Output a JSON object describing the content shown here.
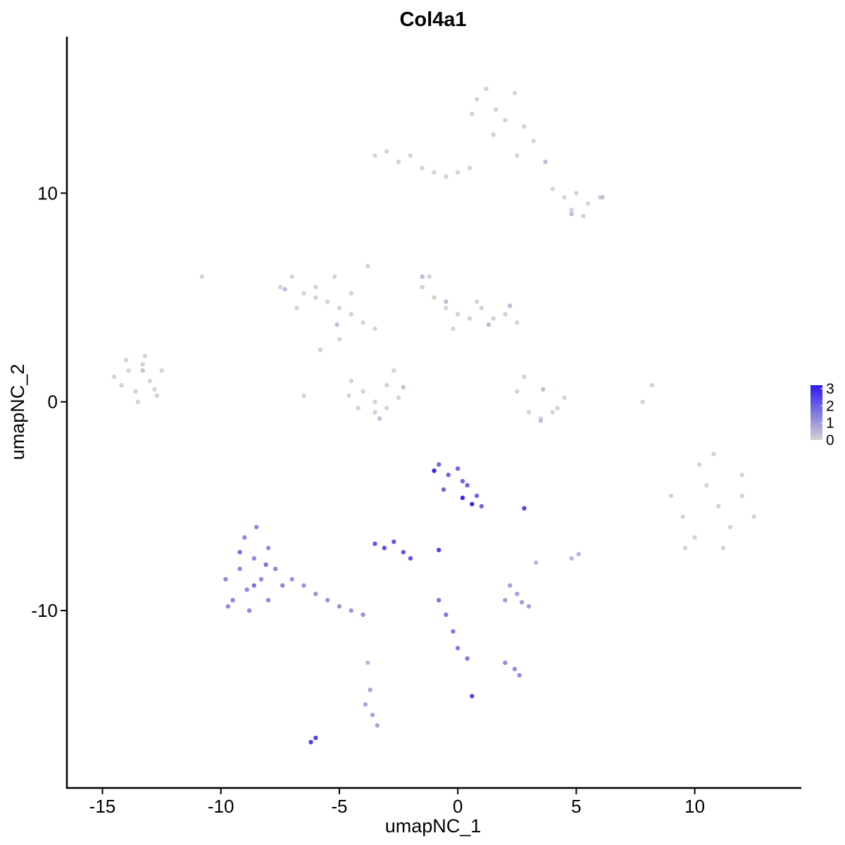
{
  "chart_data": {
    "type": "scatter",
    "title": "Col4a1",
    "xlabel": "umapNC_1",
    "ylabel": "umapNC_2",
    "xlim": [
      -16.5,
      14.5
    ],
    "ylim": [
      -18.5,
      17.5
    ],
    "x_ticks": [
      -15,
      -10,
      -5,
      0,
      5,
      10
    ],
    "y_ticks": [
      -10,
      0,
      10
    ],
    "x_tick_labels": [
      "-15",
      "-10",
      "-5",
      "0",
      "5",
      "10"
    ],
    "y_tick_labels": [
      "-10",
      "0",
      "10"
    ],
    "grid": false,
    "legend": {
      "placement": "right",
      "min": 0,
      "max": 3.2,
      "labels": [
        "3",
        "2",
        "1",
        "0"
      ],
      "values": [
        3,
        2,
        1,
        0
      ],
      "low_color": "#D3D3D3",
      "high_color": "#2A1CF0"
    },
    "series": [
      {
        "x": [
          -14.5,
          -14.2,
          -13.9,
          -13.6,
          -13.3,
          -13.0,
          -12.7,
          -14.0,
          -13.5,
          -13.2,
          -12.5,
          -12.8
        ],
        "y": [
          1.2,
          0.8,
          1.5,
          0.5,
          1.8,
          1.0,
          0.3,
          2.0,
          0.0,
          2.2,
          1.5,
          0.6
        ],
        "value": 0
      },
      {
        "x": [
          -13.3
        ],
        "y": [
          1.5
        ],
        "value": 0.3
      },
      {
        "x": [
          -7.5,
          -7.0,
          -6.5,
          -6.0,
          -5.5,
          -5.0,
          -4.5,
          -4.0,
          -3.5,
          -6.8,
          -6.0,
          -5.2
        ],
        "y": [
          5.5,
          6.0,
          5.2,
          5.0,
          4.8,
          4.5,
          4.2,
          3.8,
          3.5,
          4.5,
          5.5,
          6.0
        ],
        "value": 0
      },
      {
        "x": [
          -7.3,
          -5.1
        ],
        "y": [
          5.4,
          3.7
        ],
        "value": 0.4
      },
      {
        "x": [
          -4.5,
          -4.0,
          -3.5,
          -3.0,
          -2.5,
          -3.0,
          -3.5,
          -4.2,
          -4.6,
          -2.7
        ],
        "y": [
          1.0,
          0.5,
          0.0,
          -0.3,
          0.2,
          0.8,
          -0.5,
          -0.3,
          0.3,
          1.5
        ],
        "value": 0
      },
      {
        "x": [
          -3.3,
          -2.3
        ],
        "y": [
          -0.8,
          0.7
        ],
        "value": 0.3
      },
      {
        "x": [
          -1.5,
          -1.0,
          -0.5,
          0.0,
          0.5,
          1.0,
          1.5,
          2.0,
          2.5,
          -1.2,
          -0.2,
          0.8
        ],
        "y": [
          5.5,
          5.0,
          4.5,
          4.2,
          4.0,
          4.5,
          4.0,
          4.2,
          3.8,
          6.0,
          3.5,
          4.8
        ],
        "value": 0
      },
      {
        "x": [
          -1.5,
          -0.5,
          1.3,
          2.2
        ],
        "y": [
          6.0,
          4.8,
          3.7,
          4.6
        ],
        "value": 0.4
      },
      {
        "x": [
          0.8,
          1.2,
          1.6,
          2.0,
          2.4,
          2.8,
          3.2,
          1.5,
          2.5,
          0.6
        ],
        "y": [
          14.5,
          15.0,
          14.0,
          13.5,
          14.8,
          13.2,
          12.5,
          12.8,
          11.8,
          13.8
        ],
        "value": 0
      },
      {
        "x": [
          -3.5,
          -3.0,
          -2.5,
          -2.0,
          -1.5,
          -1.0,
          -0.5,
          0.0,
          0.5
        ],
        "y": [
          11.8,
          12.0,
          11.5,
          11.8,
          11.2,
          11.0,
          10.8,
          11.0,
          11.2
        ],
        "value": 0
      },
      {
        "x": [
          4.0,
          4.5,
          5.0,
          5.5,
          6.0,
          4.8,
          5.3
        ],
        "y": [
          10.2,
          9.8,
          10.0,
          9.5,
          9.8,
          9.2,
          8.9
        ],
        "value": 0
      },
      {
        "x": [
          4.8,
          6.1,
          3.7
        ],
        "y": [
          9.0,
          9.8,
          11.5
        ],
        "value": 0.4
      },
      {
        "x": [
          2.5,
          3.0,
          3.5,
          4.0,
          4.5,
          2.8,
          4.2
        ],
        "y": [
          0.5,
          -0.5,
          -0.8,
          -0.5,
          0.2,
          1.2,
          -0.3
        ],
        "value": 0
      },
      {
        "x": [
          3.6,
          3.5
        ],
        "y": [
          0.6,
          -0.9
        ],
        "value": 0.4
      },
      {
        "x": [
          9.0,
          9.5,
          10.0,
          10.5,
          11.0,
          11.5,
          12.0,
          12.5,
          10.2,
          11.2,
          9.6,
          12.0,
          10.8
        ],
        "y": [
          -4.5,
          -5.5,
          -6.5,
          -4.0,
          -5.0,
          -6.0,
          -4.5,
          -5.5,
          -3.0,
          -7.0,
          -7.0,
          -3.5,
          -2.5
        ],
        "value": 0
      },
      {
        "x": [
          -5.8,
          -4.5,
          -3.8,
          -5.0,
          -6.5
        ],
        "y": [
          2.5,
          5.2,
          6.5,
          3.0,
          0.3
        ],
        "value": 0
      },
      {
        "x": [
          7.8,
          8.2,
          -10.8
        ],
        "y": [
          0.0,
          0.8,
          6.0
        ],
        "value": 0
      },
      {
        "x": [
          -9.8,
          -9.5,
          -9.2,
          -8.9,
          -8.6,
          -8.3,
          -8.0,
          -7.7,
          -7.4,
          -9.0,
          -8.5,
          -8.0,
          -9.7,
          -8.8
        ],
        "y": [
          -8.5,
          -9.5,
          -8.0,
          -9.0,
          -7.5,
          -8.5,
          -9.5,
          -8.0,
          -8.8,
          -6.5,
          -6.0,
          -7.0,
          -9.8,
          -10.0
        ],
        "value": 1.3
      },
      {
        "x": [
          -9.2,
          -8.6,
          -8.1
        ],
        "y": [
          -7.2,
          -8.8,
          -7.8
        ],
        "value": 1.7
      },
      {
        "x": [
          -7.0,
          -6.5,
          -6.0,
          -5.5,
          -5.0,
          -4.5,
          -4.0
        ],
        "y": [
          -8.5,
          -8.8,
          -9.2,
          -9.5,
          -9.8,
          -10.0,
          -10.2
        ],
        "value": 1.1
      },
      {
        "x": [
          -0.8,
          -0.4,
          0.0,
          0.4,
          0.8,
          -0.6,
          0.2,
          1.0
        ],
        "y": [
          -3.0,
          -3.5,
          -3.2,
          -4.0,
          -4.5,
          -4.2,
          -3.8,
          -5.0
        ],
        "value": 1.9
      },
      {
        "x": [
          0.6,
          -1.0,
          0.2
        ],
        "y": [
          -4.9,
          -3.3,
          -4.6
        ],
        "value": 3.0
      },
      {
        "x": [
          -3.5,
          -3.1,
          -2.7,
          -2.3,
          -2.0
        ],
        "y": [
          -6.8,
          -7.0,
          -6.7,
          -7.2,
          -7.5
        ],
        "value": 2.2
      },
      {
        "x": [
          -0.8,
          -0.5,
          -0.2,
          0.0,
          0.4
        ],
        "y": [
          -9.5,
          -10.2,
          -11.0,
          -11.8,
          -12.3
        ],
        "value": 1.6
      },
      {
        "x": [
          2.0,
          2.5,
          3.0,
          2.2,
          2.7
        ],
        "y": [
          -9.5,
          -9.2,
          -9.8,
          -8.8,
          -9.6
        ],
        "value": 0.9
      },
      {
        "x": [
          2.0,
          2.4,
          2.6
        ],
        "y": [
          -12.5,
          -12.8,
          -13.1
        ],
        "value": 1.2
      },
      {
        "x": [
          -3.9,
          -3.6,
          -3.4,
          -3.7
        ],
        "y": [
          -14.5,
          -15.0,
          -15.5,
          -13.8
        ],
        "value": 0.8
      },
      {
        "x": [
          -6.2,
          -6.0,
          2.8,
          -0.8,
          0.6
        ],
        "y": [
          -16.3,
          -16.1,
          -5.1,
          -7.1,
          -14.1
        ],
        "value": 2.5
      },
      {
        "x": [
          4.8,
          5.1,
          3.3,
          -3.8
        ],
        "y": [
          -7.5,
          -7.3,
          -7.7,
          -12.5
        ],
        "value": 0.5
      }
    ]
  }
}
